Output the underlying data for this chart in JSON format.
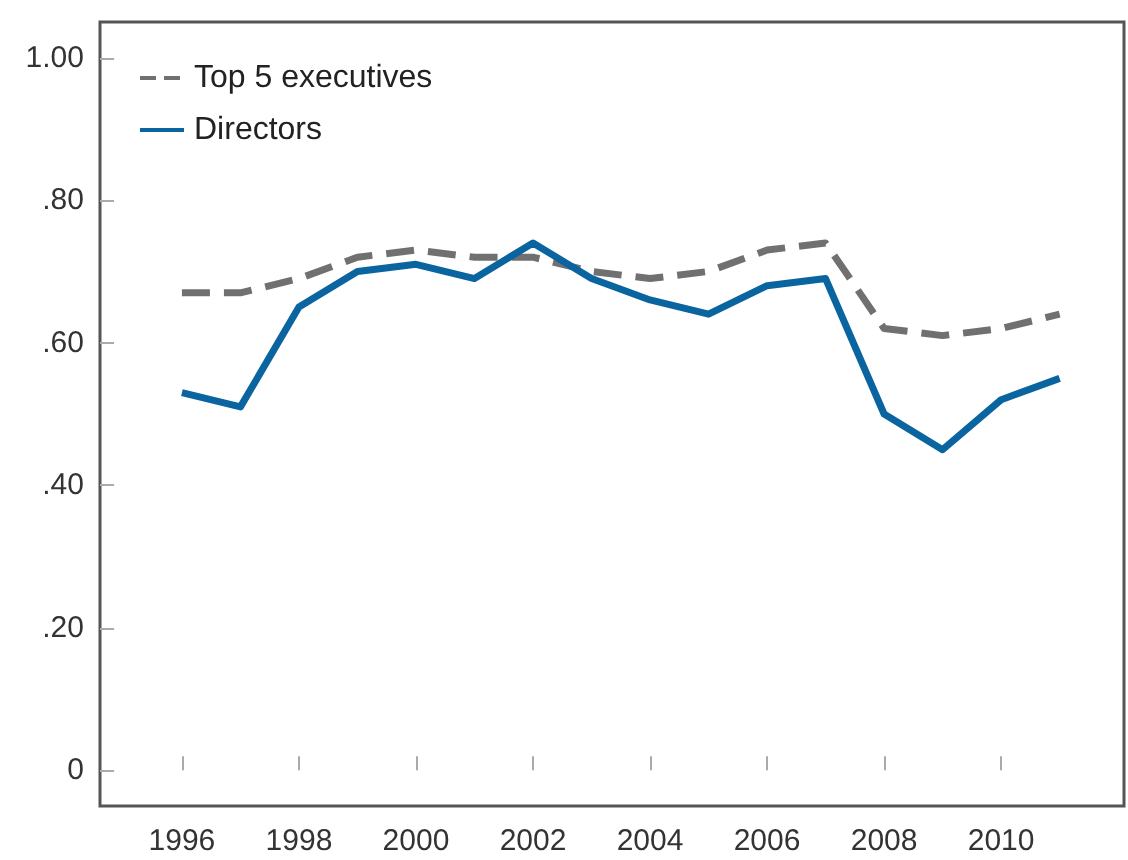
{
  "chart_data": {
    "type": "line",
    "x": [
      1996,
      1997,
      1998,
      1999,
      2000,
      2001,
      2002,
      2003,
      2004,
      2005,
      2006,
      2007,
      2008,
      2009,
      2010,
      2011
    ],
    "series": [
      {
        "name": "Top 5 executives",
        "color": "#707070",
        "line_style": "dashed",
        "values": [
          0.67,
          0.67,
          0.69,
          0.72,
          0.73,
          0.72,
          0.72,
          0.7,
          0.69,
          0.7,
          0.73,
          0.74,
          0.62,
          0.61,
          0.62,
          0.64
        ]
      },
      {
        "name": "Directors",
        "color": "#0a64a0",
        "line_style": "solid",
        "values": [
          0.53,
          0.51,
          0.65,
          0.7,
          0.71,
          0.69,
          0.74,
          0.69,
          0.66,
          0.64,
          0.68,
          0.69,
          0.5,
          0.45,
          0.52,
          0.55
        ]
      }
    ],
    "xlim": [
      1994.6,
      2012.1
    ],
    "xticks": [
      1996,
      1998,
      2000,
      2002,
      2004,
      2006,
      2008,
      2010
    ],
    "ylim": [
      -0.05,
      1.05
    ],
    "yticks": [
      0,
      {
        "value": 0.2,
        "label": ".20"
      },
      {
        "value": 0.4,
        "label": ".40"
      },
      {
        "value": 0.6,
        "label": ".60"
      },
      {
        "value": 0.8,
        "label": ".80"
      },
      {
        "value": 1,
        "label": "1.00"
      }
    ],
    "grid": false,
    "legend": "top left",
    "marker": "none"
  }
}
